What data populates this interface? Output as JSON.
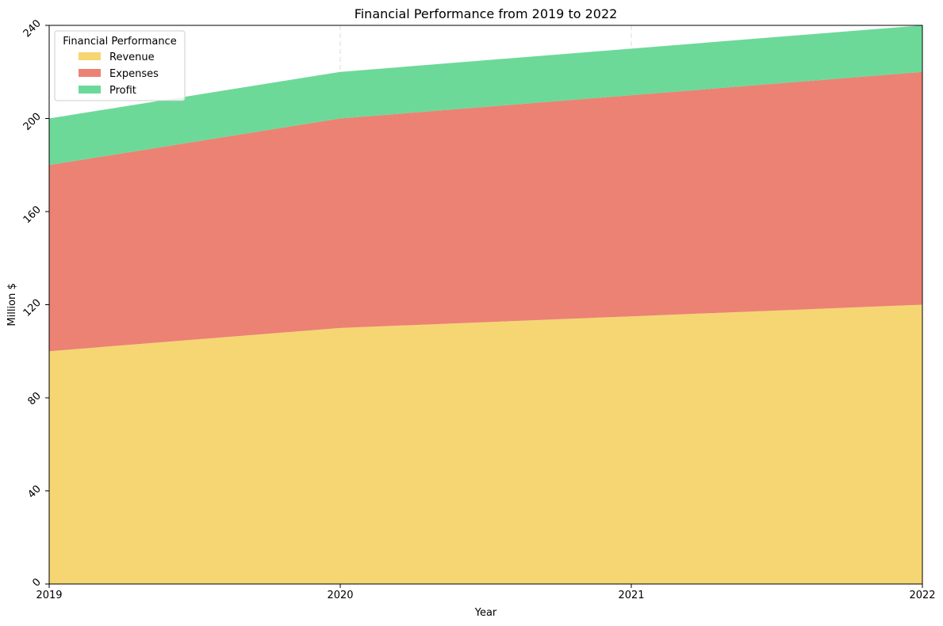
{
  "chart_data": {
    "type": "area",
    "stacked": true,
    "title": "Financial Performance from 2019 to 2022",
    "xlabel": "Year",
    "ylabel": "Million $",
    "x": [
      "2019",
      "2020",
      "2021",
      "2022"
    ],
    "ylim": [
      0,
      240
    ],
    "yticks": [
      0,
      40,
      80,
      120,
      160,
      200,
      240
    ],
    "grid": true,
    "legend": {
      "title": "Financial Performance",
      "placement": "top-left"
    },
    "series": [
      {
        "name": "Revenue",
        "values": [
          100,
          110,
          115,
          120
        ],
        "color": "#f4d46c"
      },
      {
        "name": "Expenses",
        "values": [
          80,
          90,
          95,
          100
        ],
        "color": "#eb7b6c"
      },
      {
        "name": "Profit",
        "values": [
          20,
          20,
          20,
          20
        ],
        "color": "#64d794"
      }
    ]
  }
}
